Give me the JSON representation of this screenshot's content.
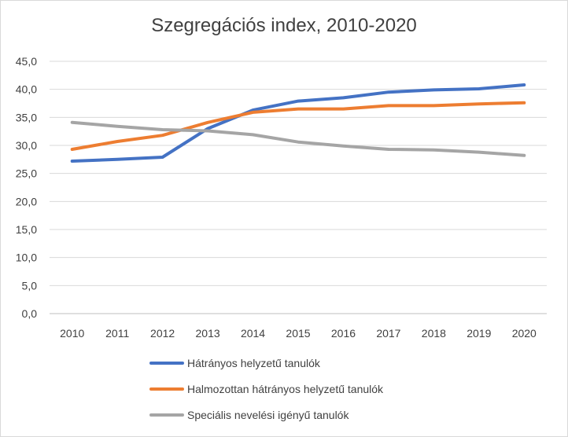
{
  "chart_data": {
    "type": "line",
    "title": "Szegregációs index, 2010-2020",
    "xlabel": "",
    "ylabel": "",
    "categories": [
      "2010",
      "2011",
      "2012",
      "2013",
      "2014",
      "2015",
      "2016",
      "2017",
      "2018",
      "2019",
      "2020"
    ],
    "ylim": [
      0,
      45
    ],
    "yticks": [
      "0,0",
      "5,0",
      "10,0",
      "15,0",
      "20,0",
      "25,0",
      "30,0",
      "35,0",
      "40,0",
      "45,0"
    ],
    "grid": true,
    "legend_position": "bottom",
    "series": [
      {
        "name": "Hátrányos helyzetű tanulók",
        "color": "#4472c4",
        "values": [
          27.2,
          27.5,
          27.9,
          33.0,
          36.3,
          37.9,
          38.5,
          39.5,
          39.9,
          40.1,
          40.8
        ]
      },
      {
        "name": "Halmozottan hátrányos helyzetű tanulók",
        "color": "#ed7d31",
        "values": [
          29.3,
          30.7,
          31.8,
          34.1,
          35.9,
          36.5,
          36.5,
          37.1,
          37.1,
          37.4,
          37.6
        ]
      },
      {
        "name": "Speciális nevelési igényű tanulók",
        "color": "#a5a5a5",
        "values": [
          34.1,
          33.4,
          32.8,
          32.6,
          31.9,
          30.6,
          29.9,
          29.3,
          29.2,
          28.8,
          28.2
        ]
      }
    ]
  }
}
